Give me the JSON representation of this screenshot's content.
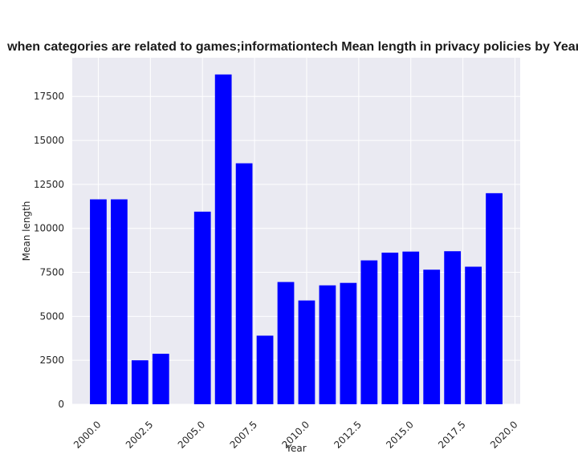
{
  "chart_data": {
    "type": "bar",
    "title": "when categories are related to games;informationtech Mean length in privacy policies by Year",
    "xlabel": "Year",
    "ylabel": "Mean length",
    "x": [
      2000,
      2001,
      2002,
      2003,
      2005,
      2006,
      2007,
      2008,
      2009,
      2010,
      2011,
      2012,
      2013,
      2014,
      2015,
      2016,
      2017,
      2018,
      2019
    ],
    "values": [
      11650,
      11650,
      2500,
      2870,
      10950,
      18750,
      13700,
      3900,
      6950,
      5900,
      6760,
      6900,
      8180,
      8620,
      8680,
      7650,
      8700,
      7820,
      12000
    ],
    "xlim": [
      1998.75,
      2020.25
    ],
    "ylim": [
      0,
      19700
    ],
    "xticks": [
      2000.0,
      2002.5,
      2005.0,
      2007.5,
      2010.0,
      2012.5,
      2015.0,
      2017.5,
      2020.0
    ],
    "xtick_labels": [
      "2000.0",
      "2002.5",
      "2005.0",
      "2007.5",
      "2010.0",
      "2012.5",
      "2015.0",
      "2017.5",
      "2020.0"
    ],
    "yticks": [
      0,
      2500,
      5000,
      7500,
      10000,
      12500,
      15000,
      17500
    ],
    "ytick_labels": [
      "0",
      "2500",
      "5000",
      "7500",
      "10000",
      "12500",
      "15000",
      "17500"
    ],
    "bar_color": "#0000ff",
    "background_color": "#eaeaf2",
    "grid": true
  }
}
